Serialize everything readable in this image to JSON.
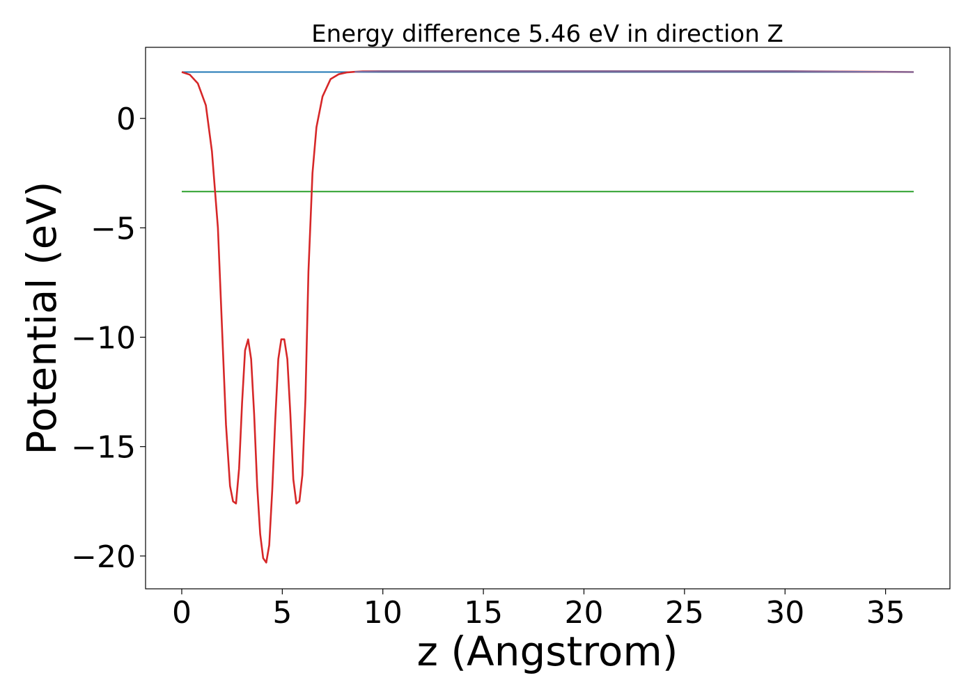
{
  "chart_data": {
    "type": "line",
    "title": "Energy difference 5.46 eV in direction Z",
    "xlabel": "z (Angstrom)",
    "ylabel": "Potential (eV)",
    "xlim": [
      -1.8,
      38.2
    ],
    "ylim": [
      -21.5,
      3.25
    ],
    "xticks": [
      0,
      5,
      10,
      15,
      20,
      25,
      30,
      35
    ],
    "yticks": [
      0,
      -5,
      -10,
      -15,
      -20
    ],
    "xtick_labels": [
      "0",
      "5",
      "10",
      "15",
      "20",
      "25",
      "30",
      "35"
    ],
    "ytick_labels": [
      "0",
      "−5",
      "−10",
      "−15",
      "−20"
    ],
    "grid": false,
    "series": [
      {
        "color": "#1f77b4",
        "x": [
          0,
          36.4
        ],
        "y": [
          2.12,
          2.12
        ]
      },
      {
        "color": "#2ca02c",
        "x": [
          0,
          36.4
        ],
        "y": [
          -3.34,
          -3.34
        ]
      },
      {
        "color": "#d62728",
        "x": [
          0,
          0.4,
          0.8,
          1.2,
          1.5,
          1.8,
          2.0,
          2.2,
          2.4,
          2.55,
          2.7,
          2.85,
          3.0,
          3.15,
          3.3,
          3.45,
          3.6,
          3.75,
          3.9,
          4.05,
          4.2,
          4.35,
          4.5,
          4.65,
          4.8,
          4.95,
          5.1,
          5.25,
          5.4,
          5.55,
          5.7,
          5.85,
          6.0,
          6.15,
          6.3,
          6.5,
          6.7,
          7.0,
          7.4,
          7.8,
          8.2,
          8.6,
          9.0,
          10.0,
          15.0,
          20.0,
          25.0,
          30.0,
          36.4
        ],
        "y": [
          2.12,
          2.0,
          1.6,
          0.6,
          -1.5,
          -5.0,
          -9.5,
          -14.0,
          -16.8,
          -17.5,
          -17.6,
          -16.0,
          -13.0,
          -10.6,
          -10.1,
          -11.0,
          -13.5,
          -16.8,
          -19.0,
          -20.1,
          -20.3,
          -19.5,
          -17.0,
          -13.8,
          -11.0,
          -10.1,
          -10.1,
          -11.0,
          -13.5,
          -16.5,
          -17.6,
          -17.5,
          -16.3,
          -12.8,
          -7.0,
          -2.5,
          -0.4,
          1.0,
          1.8,
          2.02,
          2.1,
          2.13,
          2.15,
          2.16,
          2.16,
          2.16,
          2.16,
          2.16,
          2.12
        ]
      },
      {
        "color": "#7570a8",
        "x": [
          8.6,
          10.0,
          15.0,
          20.0,
          25.0,
          30.0,
          36.4
        ],
        "y": [
          2.13,
          2.16,
          2.16,
          2.16,
          2.16,
          2.16,
          2.12
        ]
      }
    ]
  }
}
